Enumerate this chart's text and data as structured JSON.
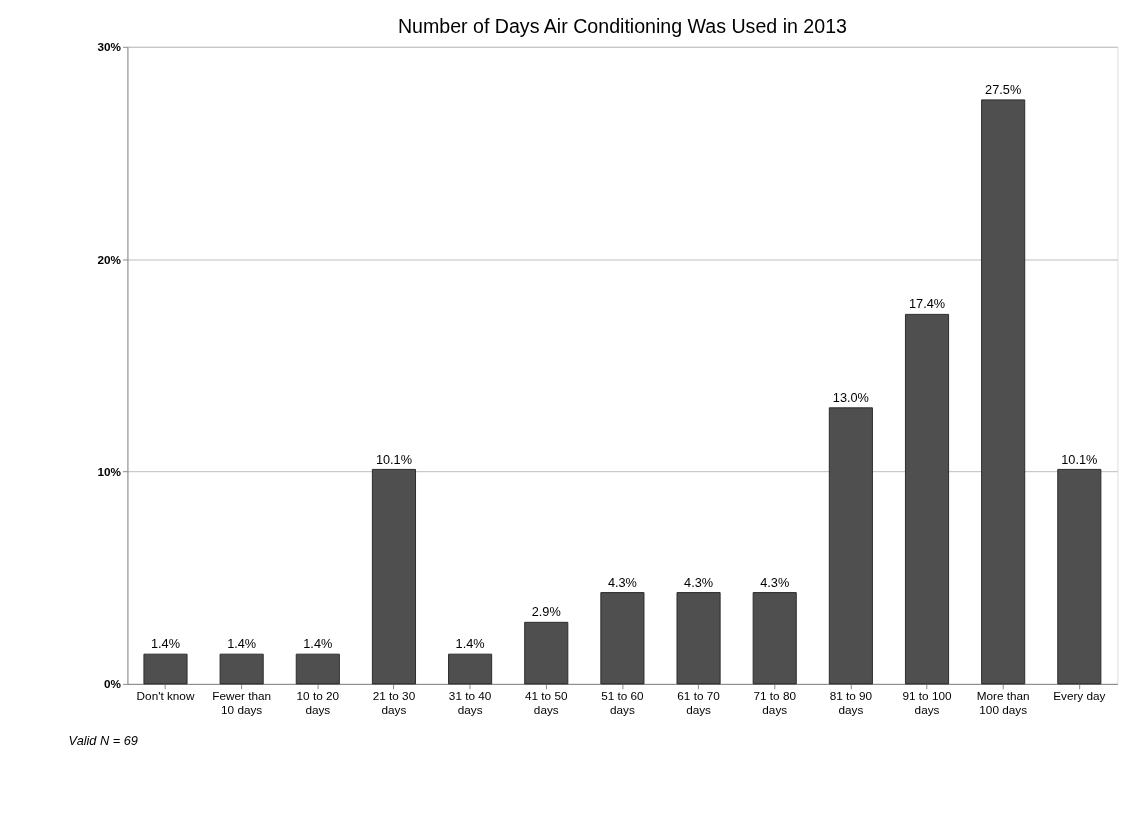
{
  "chart_data": {
    "type": "bar",
    "title": "Number of Days Air Conditioning Was Used in 2013",
    "categories": [
      "Don't know",
      "Fewer than 10 days",
      "10 to 20 days",
      "21 to 30 days",
      "31 to 40 days",
      "41 to 50 days",
      "51 to 60 days",
      "61 to 70 days",
      "71 to 80 days",
      "81 to 90 days",
      "91 to 100 days",
      "More than 100 days",
      "Every day"
    ],
    "values": [
      1.4,
      1.4,
      1.4,
      10.1,
      1.4,
      2.9,
      4.3,
      4.3,
      4.3,
      13.0,
      17.4,
      27.5,
      10.1
    ],
    "value_labels": [
      "1.4%",
      "1.4%",
      "1.4%",
      "10.1%",
      "1.4%",
      "2.9%",
      "4.3%",
      "4.3%",
      "4.3%",
      "13.0%",
      "17.4%",
      "27.5%",
      "10.1%"
    ],
    "color": "#4f4f4f",
    "ylim": [
      0,
      30
    ],
    "yticks": [
      {
        "value": 0,
        "label": "0%"
      },
      {
        "value": 10,
        "label": "10%"
      },
      {
        "value": 20,
        "label": "20%"
      },
      {
        "value": 30,
        "label": "30%"
      }
    ],
    "grid": "y",
    "annotations": [
      "Valid N = 69"
    ]
  }
}
